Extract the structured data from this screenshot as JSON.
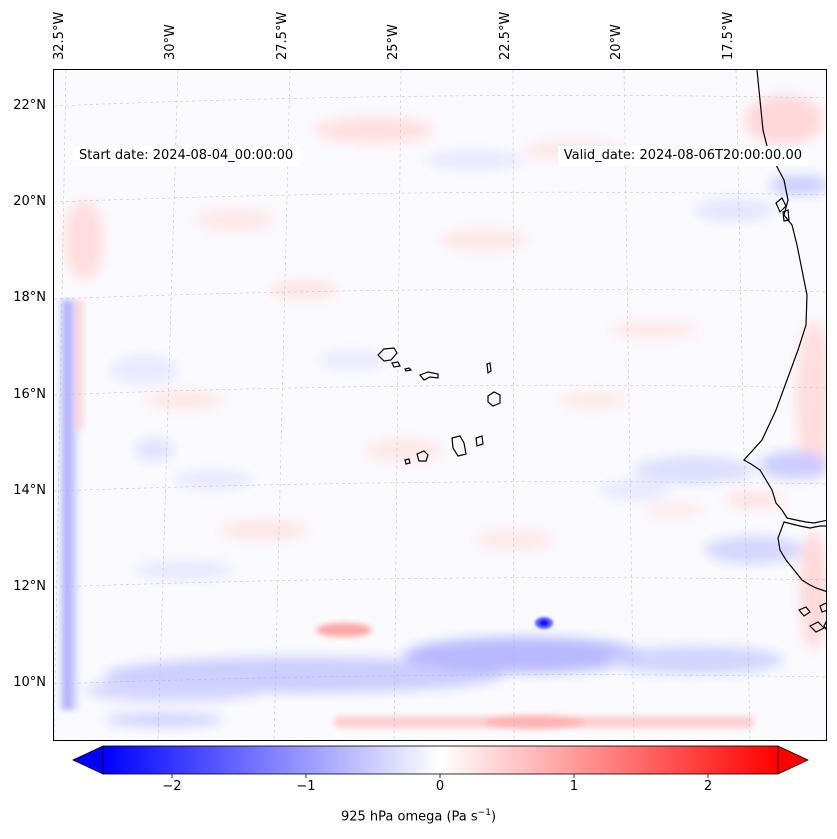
{
  "map": {
    "start_date": "Start date: 2024-08-04_00:00:00",
    "valid_date": "Valid_date: 2024-08-06T20:00:00.00",
    "lon_labels": [
      "32.5°W",
      "30°W",
      "27.5°W",
      "25°W",
      "22.5°W",
      "20°W",
      "17.5°W"
    ],
    "lat_labels": [
      "22°N",
      "20°N",
      "18°N",
      "16°N",
      "14°N",
      "12°N",
      "10°N"
    ],
    "coastline_color": "#000000",
    "gridline_color": "#b0b0b0"
  },
  "colorbar": {
    "tick_labels": [
      "−2",
      "−1",
      "0",
      "1",
      "2"
    ],
    "label": "925 hPa omega (Pa s",
    "label_sup": "−1",
    "label_end": ")",
    "min_color": "#0000ff",
    "mid_color": "#ffffff",
    "max_color": "#ff0000"
  }
}
